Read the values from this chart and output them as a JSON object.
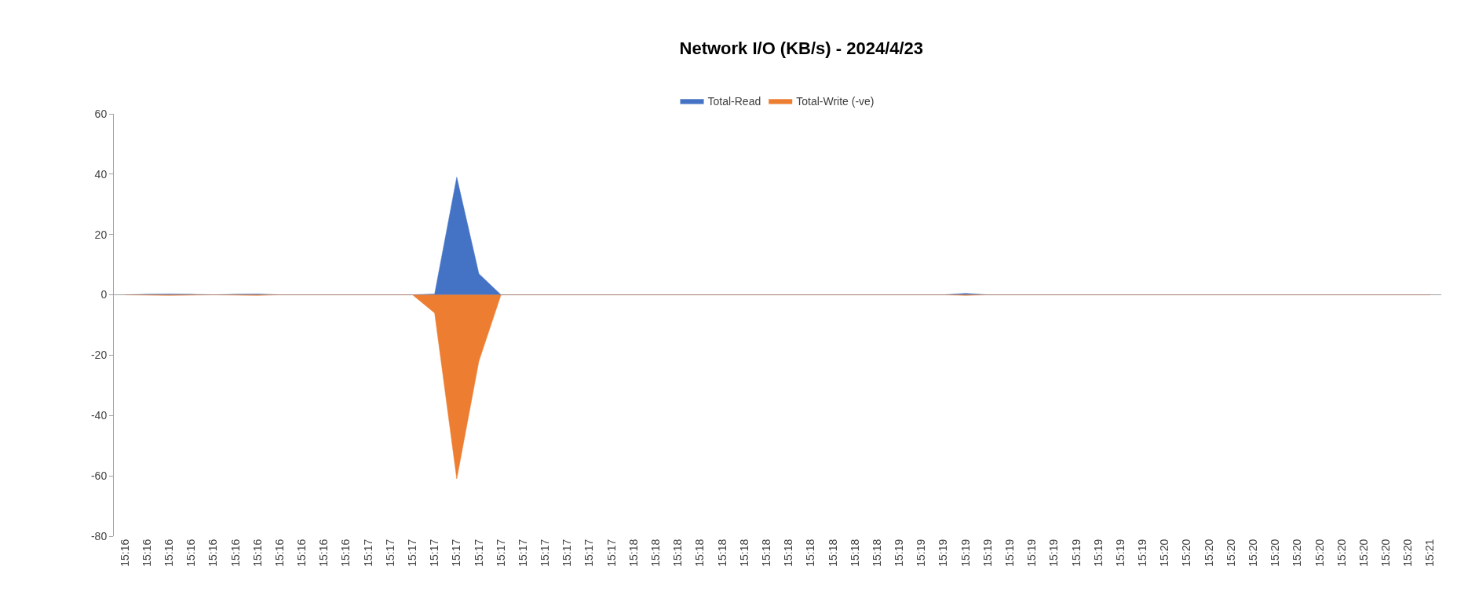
{
  "chart_data": {
    "type": "area",
    "title": "Network I/O (KB/s) - 2024/4/23",
    "categories": [
      "15:16",
      "15:16",
      "15:16",
      "15:16",
      "15:16",
      "15:16",
      "15:16",
      "15:16",
      "15:16",
      "15:16",
      "15:16",
      "15:17",
      "15:17",
      "15:17",
      "15:17",
      "15:17",
      "15:17",
      "15:17",
      "15:17",
      "15:17",
      "15:17",
      "15:17",
      "15:17",
      "15:18",
      "15:18",
      "15:18",
      "15:18",
      "15:18",
      "15:18",
      "15:18",
      "15:18",
      "15:18",
      "15:18",
      "15:18",
      "15:18",
      "15:19",
      "15:19",
      "15:19",
      "15:19",
      "15:19",
      "15:19",
      "15:19",
      "15:19",
      "15:19",
      "15:19",
      "15:19",
      "15:19",
      "15:20",
      "15:20",
      "15:20",
      "15:20",
      "15:20",
      "15:20",
      "15:20",
      "15:20",
      "15:20",
      "15:20",
      "15:20",
      "15:20",
      "15:21"
    ],
    "series": [
      {
        "name": "Total-Read",
        "color": "#4472c4",
        "values": [
          0,
          0.2,
          0.3,
          0.2,
          0,
          0.2,
          0.3,
          0,
          0,
          0,
          0,
          0,
          0,
          0,
          0.3,
          39,
          7,
          0,
          0,
          0,
          0,
          0,
          0,
          0,
          0,
          0,
          0,
          0,
          0,
          0,
          0,
          0,
          0,
          0,
          0,
          0,
          0,
          0,
          0.5,
          0,
          0,
          0,
          0,
          0,
          0,
          0,
          0,
          0,
          0,
          0,
          0,
          0,
          0,
          0,
          0,
          0,
          0,
          0,
          0,
          0
        ]
      },
      {
        "name": "Total-Write (-ve)",
        "color": "#ed7d31",
        "values": [
          0,
          -0.1,
          -0.2,
          -0.1,
          0,
          -0.1,
          -0.2,
          0,
          0,
          0,
          0,
          0,
          0,
          0,
          -6,
          -61,
          -22,
          0,
          0,
          0,
          0,
          0,
          0,
          0,
          0,
          0,
          0,
          0,
          0,
          0,
          0,
          0,
          0,
          0,
          0,
          0,
          0,
          0,
          -0.2,
          0,
          0,
          0,
          0,
          0,
          0,
          0,
          0,
          0,
          0,
          0,
          0,
          0,
          0,
          0,
          0,
          0,
          0,
          0,
          0,
          0
        ]
      }
    ],
    "ylim": [
      -80,
      60
    ],
    "yticks": [
      -80,
      -60,
      -40,
      -20,
      0,
      20,
      40,
      60
    ],
    "legend": "top"
  }
}
